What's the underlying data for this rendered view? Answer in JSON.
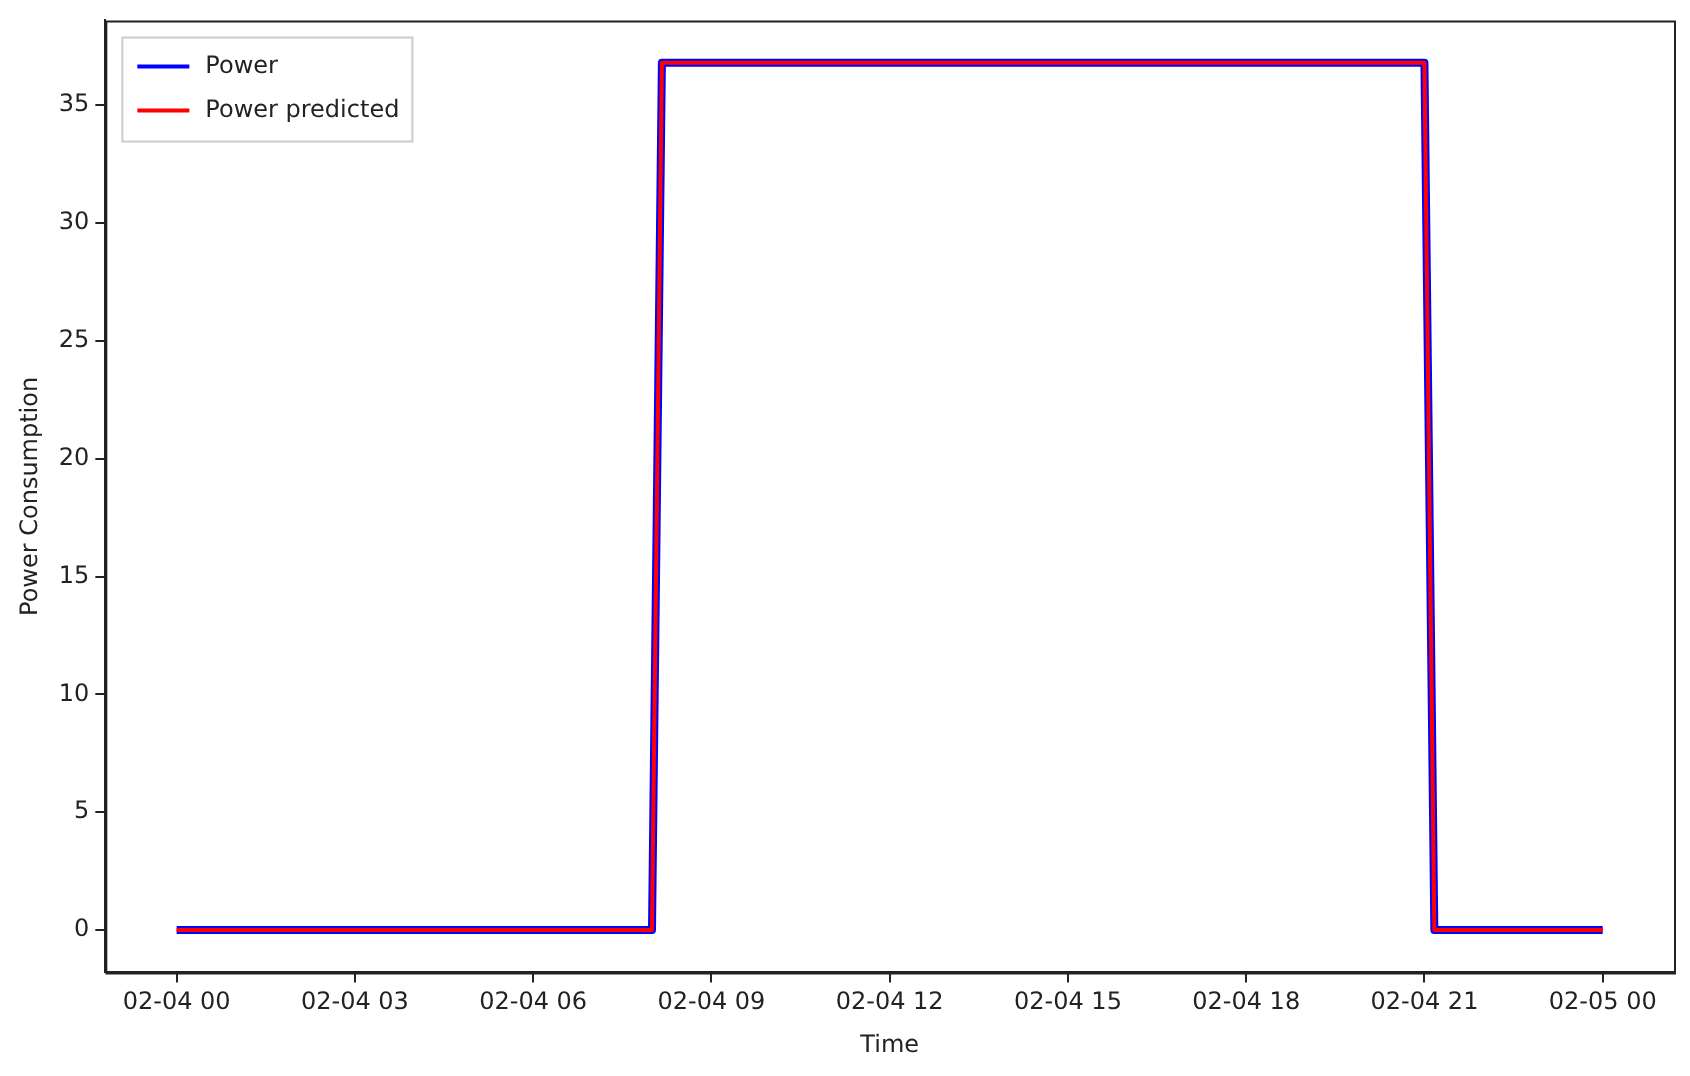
{
  "chart_data": {
    "type": "line",
    "xlabel": "Time",
    "ylabel": "Power Consumption",
    "x": [
      "--02-04T00:00",
      "--02-04T08:00",
      "--02-04T08:10",
      "--02-04T21:00",
      "--02-04T21:10",
      "--02-05T00:00"
    ],
    "series": [
      {
        "name": "Power",
        "color": "#0000ff",
        "values": [
          0,
          0,
          36.8,
          36.8,
          0,
          0
        ]
      },
      {
        "name": "Power predicted",
        "color": "#ff0000",
        "values": [
          0,
          0,
          36.8,
          36.8,
          0,
          0
        ]
      }
    ],
    "xlim": [
      "--02-03T22:48",
      "--02-05T01:12"
    ],
    "xticks": [
      {
        "value": "--02-04T00:00",
        "label": "02-04 00"
      },
      {
        "value": "--02-04T03:00",
        "label": "02-04 03"
      },
      {
        "value": "--02-04T06:00",
        "label": "02-04 06"
      },
      {
        "value": "--02-04T09:00",
        "label": "02-04 09"
      },
      {
        "value": "--02-04T12:00",
        "label": "02-04 12"
      },
      {
        "value": "--02-04T15:00",
        "label": "02-04 15"
      },
      {
        "value": "--02-04T18:00",
        "label": "02-04 18"
      },
      {
        "value": "--02-04T21:00",
        "label": "02-04 21"
      },
      {
        "value": "--02-05T00:00",
        "label": "02-05 00"
      }
    ],
    "ylim": [
      -1.8,
      38.6
    ],
    "yticks": [
      0,
      5,
      10,
      15,
      20,
      25,
      30,
      35
    ],
    "grid": false,
    "legend": "top left",
    "marker": "none",
    "line_style": "solid"
  }
}
